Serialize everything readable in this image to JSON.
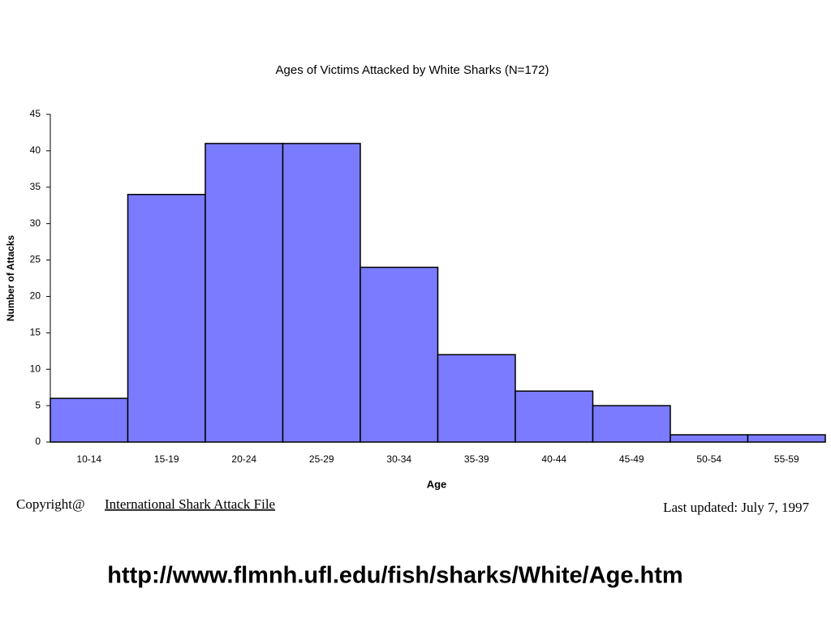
{
  "chart_data": {
    "type": "bar",
    "title": "Ages of Victims Attacked by White Sharks  (N=172)",
    "x_label": "Age",
    "y_label": "Number of Attacks",
    "categories": [
      "10-14",
      "15-19",
      "20-24",
      "25-29",
      "30-34",
      "35-39",
      "40-44",
      "45-49",
      "50-54",
      "55-59"
    ],
    "values": [
      6,
      34,
      41,
      41,
      24,
      12,
      7,
      5,
      1,
      1
    ],
    "color": "#7b7bff",
    "ylim": [
      0,
      45
    ],
    "yticks": [
      0,
      5,
      10,
      15,
      20,
      25,
      30,
      35,
      40,
      45
    ],
    "grid": false
  },
  "footer": {
    "copyright": "Copyright@",
    "link": "International Shark Attack File",
    "updated": "Last updated: July 7, 1997",
    "url": "http://www.flmnh.ufl.edu/fish/sharks/White/Age.htm"
  }
}
